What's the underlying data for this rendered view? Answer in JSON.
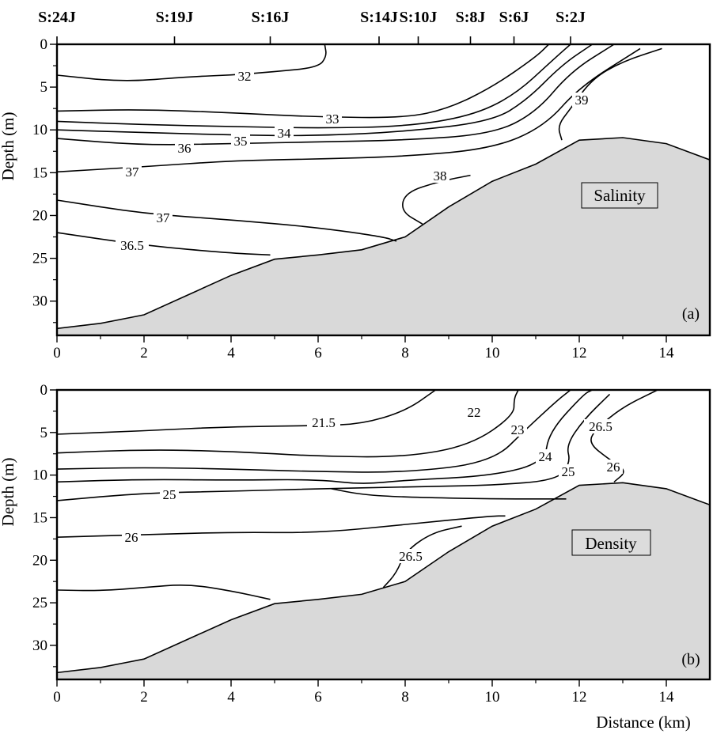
{
  "chart_data": [
    {
      "type": "contour",
      "panel": "(a)",
      "label_box": "Salinity",
      "ylabel": "Depth (m)",
      "xlabel": "",
      "xlim": [
        0,
        15
      ],
      "ylim": [
        34,
        0
      ],
      "x_ticks": [
        "0",
        "2",
        "4",
        "6",
        "8",
        "10",
        "12",
        "14"
      ],
      "y_ticks": [
        "0",
        "5",
        "10",
        "15",
        "20",
        "25",
        "30"
      ],
      "contour_labels": [
        "32",
        "33",
        "34",
        "35",
        "36",
        "37",
        "37",
        "36.5",
        "38",
        "39"
      ],
      "contours": [
        {
          "level": "32",
          "points": [
            [
              0,
              3.6
            ],
            [
              1.5,
              4.4
            ],
            [
              3,
              3.8
            ],
            [
              4,
              3.6
            ],
            [
              5,
              3.2
            ],
            [
              6,
              2.7
            ],
            [
              6.2,
              1.4
            ],
            [
              6.15,
              0
            ]
          ]
        },
        {
          "level": "33",
          "points": [
            [
              0,
              7.8
            ],
            [
              2,
              7.6
            ],
            [
              4,
              8
            ],
            [
              6,
              8.5
            ],
            [
              8,
              8.6
            ],
            [
              9,
              7.5
            ],
            [
              10,
              5
            ],
            [
              11,
              1.5
            ],
            [
              11.3,
              0
            ]
          ]
        },
        {
          "level": "34",
          "points": [
            [
              0,
              9
            ],
            [
              2,
              9.4
            ],
            [
              4,
              9.6
            ],
            [
              6,
              9.8
            ],
            [
              8,
              9.6
            ],
            [
              9.5,
              8.4
            ],
            [
              10.5,
              6
            ],
            [
              11.4,
              1.8
            ],
            [
              11.8,
              0
            ]
          ]
        },
        {
          "level": "35",
          "points": [
            [
              0,
              10
            ],
            [
              2,
              10.3
            ],
            [
              4,
              10.6
            ],
            [
              6,
              10.7
            ],
            [
              8,
              10.2
            ],
            [
              10,
              9
            ],
            [
              10.8,
              6.5
            ],
            [
              11.6,
              2.4
            ],
            [
              12.3,
              0
            ]
          ]
        },
        {
          "level": "36",
          "points": [
            [
              0,
              11
            ],
            [
              2,
              11.8
            ],
            [
              4,
              11.6
            ],
            [
              6,
              11.4
            ],
            [
              8,
              11.2
            ],
            [
              10,
              10.5
            ],
            [
              11,
              8
            ],
            [
              11.8,
              3.2
            ],
            [
              12.8,
              0
            ]
          ]
        },
        {
          "level": "37",
          "points": [
            [
              0,
              14.9
            ],
            [
              2,
              14.3
            ],
            [
              4,
              13.6
            ],
            [
              6,
              13.4
            ],
            [
              8,
              13.1
            ],
            [
              10,
              12.2
            ],
            [
              11.2,
              9.6
            ],
            [
              12,
              5
            ],
            [
              13.4,
              0.5
            ]
          ]
        },
        {
          "level": "39",
          "points": [
            [
              11.6,
              11.2
            ],
            [
              11.5,
              9.5
            ],
            [
              11.8,
              7.5
            ],
            [
              12.3,
              4
            ],
            [
              13,
              2
            ],
            [
              13.9,
              0.5
            ]
          ]
        },
        {
          "level": "38",
          "points": [
            [
              8.4,
              21
            ],
            [
              7.9,
              19.5
            ],
            [
              8,
              17.3
            ],
            [
              8.8,
              16
            ],
            [
              9.5,
              15.3
            ]
          ]
        },
        {
          "level": "37",
          "points": [
            [
              0,
              18.2
            ],
            [
              2,
              19.8
            ],
            [
              4,
              20.5
            ],
            [
              6,
              21.4
            ],
            [
              7.5,
              22.5
            ],
            [
              7.8,
              23
            ]
          ]
        },
        {
          "level": "36.5",
          "points": [
            [
              0,
              22
            ],
            [
              2,
              23.5
            ],
            [
              4,
              24.4
            ],
            [
              4.9,
              24.6
            ]
          ]
        }
      ]
    },
    {
      "type": "contour",
      "panel": "(b)",
      "label_box": "Density",
      "ylabel": "Depth (m)",
      "xlabel": "Distance (km)",
      "xlim": [
        0,
        15
      ],
      "ylim": [
        34,
        0
      ],
      "x_ticks": [
        "0",
        "2",
        "4",
        "6",
        "8",
        "10",
        "12",
        "14"
      ],
      "y_ticks": [
        "0",
        "5",
        "10",
        "15",
        "20",
        "25",
        "30"
      ],
      "contour_labels": [
        "21.5",
        "22",
        "23",
        "24",
        "25",
        "25",
        "26",
        "26.5",
        "26",
        "26.5"
      ],
      "contours": [
        {
          "level": "21.5",
          "points": [
            [
              0,
              5.2
            ],
            [
              2,
              4.8
            ],
            [
              4,
              4.3
            ],
            [
              6,
              4.2
            ],
            [
              7,
              4
            ],
            [
              8,
              2.5
            ],
            [
              8.7,
              0
            ]
          ]
        },
        {
          "level": "22",
          "points": [
            [
              0,
              7.4
            ],
            [
              2,
              7
            ],
            [
              4,
              7.2
            ],
            [
              6,
              7.8
            ],
            [
              8,
              7.9
            ],
            [
              9.5,
              6.5
            ],
            [
              10.5,
              3
            ],
            [
              10.5,
              1
            ],
            [
              10.6,
              0
            ]
          ]
        },
        {
          "level": "23",
          "points": [
            [
              0,
              9.3
            ],
            [
              2,
              9.1
            ],
            [
              4,
              9.3
            ],
            [
              6,
              9.6
            ],
            [
              8,
              9.7
            ],
            [
              10,
              8.5
            ],
            [
              10.8,
              4.5
            ],
            [
              11.5,
              1.2
            ],
            [
              11.8,
              0
            ]
          ]
        },
        {
          "level": "24",
          "points": [
            [
              0,
              10.8
            ],
            [
              2,
              10.5
            ],
            [
              4,
              10.6
            ],
            [
              6,
              10.5
            ],
            [
              7,
              11.1
            ],
            [
              8,
              10.6
            ],
            [
              10,
              10.1
            ],
            [
              11.2,
              8.5
            ],
            [
              11.3,
              5
            ],
            [
              12.1,
              0.5
            ],
            [
              12.3,
              0
            ]
          ]
        },
        {
          "level": "25",
          "points": [
            [
              0,
              13
            ],
            [
              2,
              12.1
            ],
            [
              4,
              11.9
            ],
            [
              6,
              11.6
            ],
            [
              8,
              11.4
            ],
            [
              10,
              11.2
            ],
            [
              11.5,
              10.6
            ],
            [
              11.8,
              8.5
            ],
            [
              11.7,
              6.5
            ],
            [
              12.1,
              3.5
            ],
            [
              12.7,
              0.5
            ]
          ]
        },
        {
          "level": "26",
          "points": [
            [
              12.4,
              4.5
            ],
            [
              12.2,
              6.2
            ],
            [
              12.7,
              8.2
            ],
            [
              13.1,
              9.5
            ],
            [
              12.8,
              10.8
            ]
          ]
        },
        {
          "level": "26.5",
          "points": [
            [
              12.4,
              4.5
            ],
            [
              13,
              2
            ],
            [
              13.8,
              0
            ]
          ]
        },
        {
          "level": "25",
          "points": [
            [
              6.3,
              11.6
            ],
            [
              7,
              12.3
            ],
            [
              8,
              12.6
            ],
            [
              10,
              12.8
            ],
            [
              11.7,
              12.8
            ]
          ]
        },
        {
          "level": "26",
          "points": [
            [
              0,
              17.3
            ],
            [
              2,
              17
            ],
            [
              4,
              16.7
            ],
            [
              6,
              16.8
            ],
            [
              8,
              15.8
            ],
            [
              10,
              14.8
            ],
            [
              10.3,
              14.8
            ]
          ]
        },
        {
          "level": "26.5",
          "points": [
            [
              7.5,
              23.2
            ],
            [
              7.8,
              21.5
            ],
            [
              8,
              19
            ],
            [
              8.6,
              16.8
            ],
            [
              9.3,
              16
            ]
          ]
        },
        {
          "level": "26.5",
          "points": [
            [
              0,
              23.5
            ],
            [
              1,
              23.6
            ],
            [
              2,
              23.2
            ],
            [
              3,
              22.8
            ],
            [
              4,
              23.6
            ],
            [
              4.9,
              24.6
            ]
          ]
        }
      ]
    }
  ],
  "stations": [
    "S:24J",
    "S:19J",
    "S:16J",
    "S:14J",
    "S:10J",
    "S:8J",
    "S:6J",
    "S:2J"
  ],
  "station_km": [
    0,
    2.7,
    4.9,
    7.4,
    8.3,
    9.5,
    10.5,
    11.8
  ],
  "bathymetry": [
    [
      0,
      33.2
    ],
    [
      1,
      32.6
    ],
    [
      1.6,
      32
    ],
    [
      2,
      31.6
    ],
    [
      3,
      29.3
    ],
    [
      4,
      27
    ],
    [
      5,
      25.1
    ],
    [
      6,
      24.6
    ],
    [
      7,
      24
    ],
    [
      8,
      22.5
    ],
    [
      9,
      19
    ],
    [
      10,
      16
    ],
    [
      11,
      14
    ],
    [
      12,
      11.2
    ],
    [
      13,
      10.9
    ],
    [
      14,
      11.6
    ],
    [
      15,
      13.5
    ]
  ]
}
